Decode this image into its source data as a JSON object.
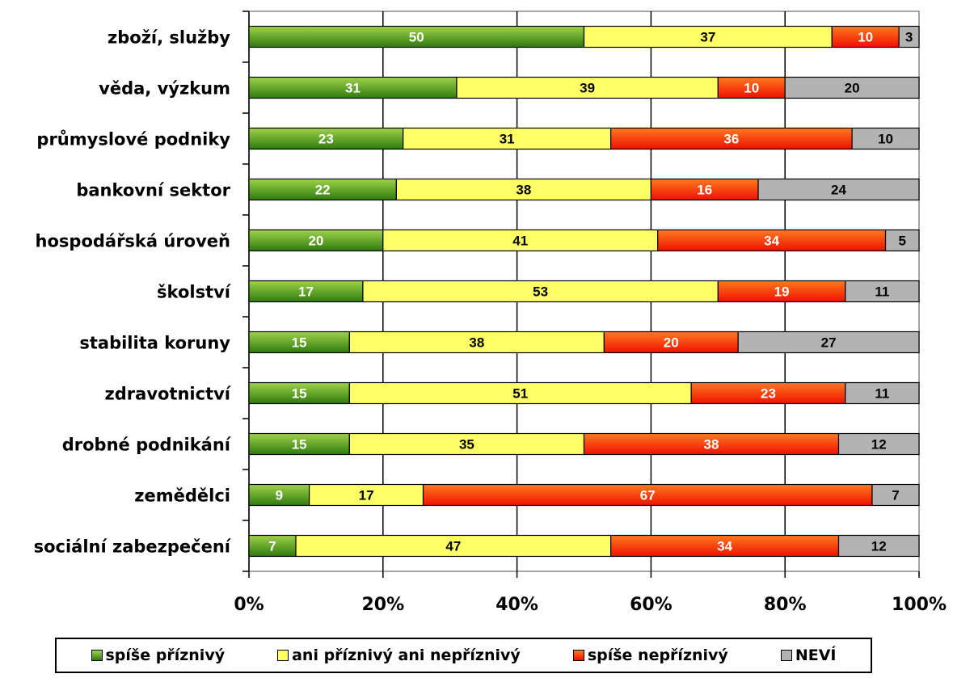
{
  "chart_data": {
    "type": "bar",
    "orientation": "horizontal",
    "stacked": true,
    "percent_axis": true,
    "categories": [
      "zboží, služby",
      "věda, výzkum",
      "průmyslové podniky",
      "bankovní sektor",
      "hospodářská úroveň",
      "školství",
      "stabilita koruny",
      "zdravotnictví",
      "drobné podnikání",
      "zemědělci",
      "sociální zabezpečení"
    ],
    "series": [
      {
        "name": "spíše příznivý",
        "color": "#4f9a1f",
        "values": [
          50,
          31,
          23,
          22,
          20,
          17,
          15,
          15,
          15,
          9,
          7
        ]
      },
      {
        "name": "ani příznivý ani nepříznivý",
        "color": "#ffff66",
        "values": [
          37,
          39,
          31,
          38,
          41,
          53,
          38,
          51,
          35,
          17,
          47
        ]
      },
      {
        "name": "spíše nepříznivý",
        "color": "#ff3300",
        "values": [
          10,
          10,
          36,
          16,
          34,
          19,
          20,
          23,
          38,
          67,
          34
        ]
      },
      {
        "name": "NEVÍ",
        "color": "#b3b3b3",
        "values": [
          3,
          20,
          10,
          24,
          5,
          11,
          27,
          11,
          12,
          7,
          12
        ]
      }
    ],
    "xlim": [
      0,
      100
    ],
    "xticks": [
      "0%",
      "20%",
      "40%",
      "60%",
      "80%",
      "100%"
    ],
    "grid": true,
    "legend_position": "bottom",
    "label_colors": [
      "#ffffff",
      "#000000",
      "#ffffff",
      "#000000"
    ]
  }
}
